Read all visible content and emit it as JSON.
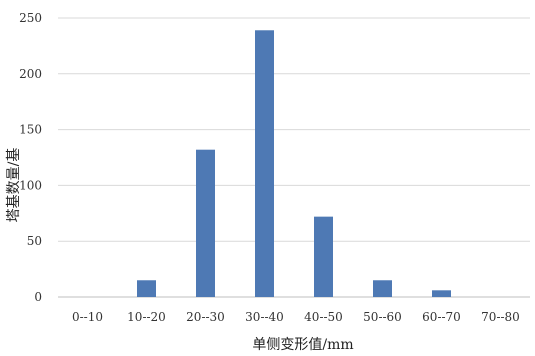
{
  "chart_data": {
    "type": "bar",
    "title": "",
    "xlabel": "单侧变形值/mm",
    "ylabel": "塔基数量/基",
    "categories": [
      "0--10",
      "10--20",
      "20--30",
      "30--40",
      "40--50",
      "50--60",
      "60--70",
      "70--80"
    ],
    "values": [
      0,
      15,
      132,
      239,
      72,
      15,
      6,
      0
    ],
    "ylim": [
      0,
      250
    ],
    "yticks": [
      0,
      50,
      100,
      150,
      200,
      250
    ],
    "grid": true,
    "legend": "none",
    "bar_color": "#4e79b4"
  }
}
